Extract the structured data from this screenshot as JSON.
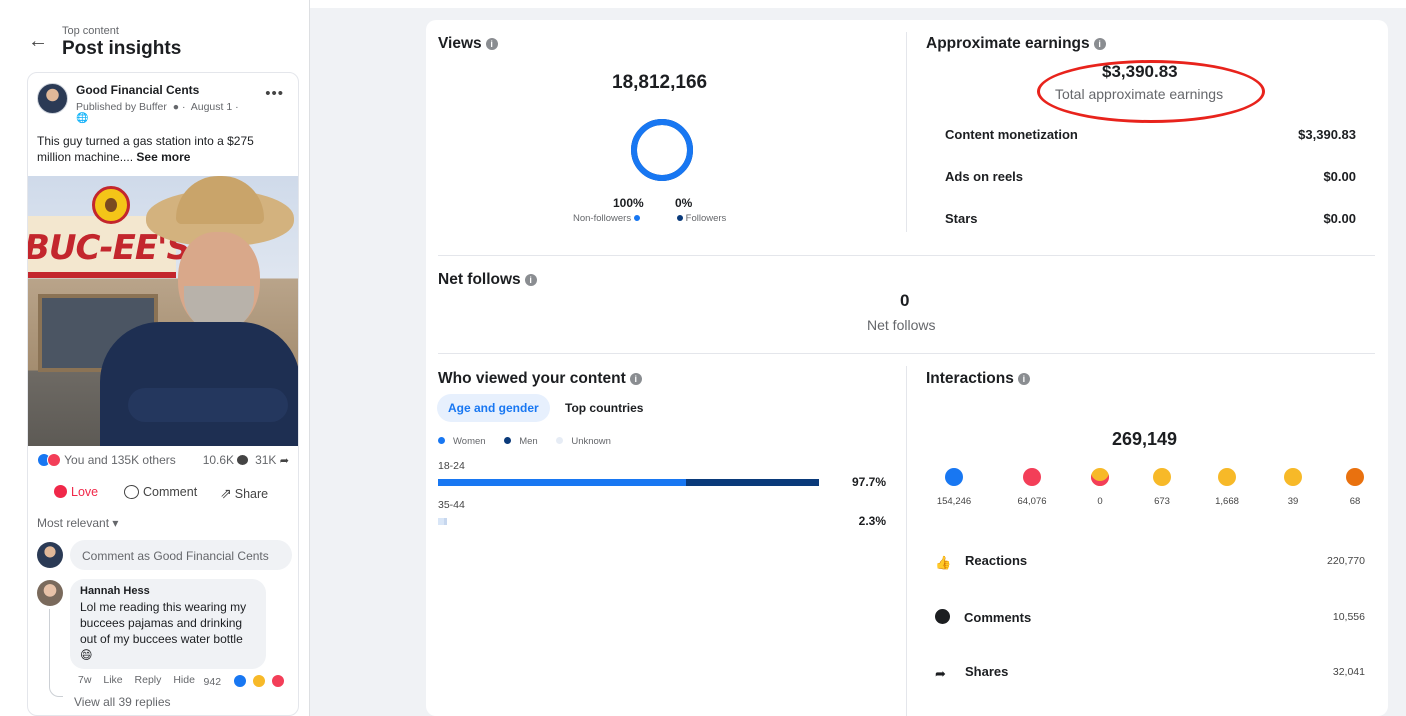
{
  "header": {
    "breadcrumb": "Top content",
    "title": "Post insights"
  },
  "post": {
    "page_name": "Good Financial Cents",
    "published": "Published by Buffer",
    "date": "August 1",
    "caption": "This guy turned a gas station into a $275 million machine....",
    "see_more": "See more",
    "reactions_text": "You and 135K others",
    "comments_count": "10.6K",
    "shares_count": "31K",
    "actions": {
      "love": "Love",
      "comment": "Comment",
      "share": "Share"
    },
    "sort_label": "Most relevant",
    "comment_placeholder": "Comment as Good Financial Cents",
    "image_sign_text": "BUC-EE'S"
  },
  "comment": {
    "author": "Hannah Hess",
    "text": "Lol me reading this wearing my buccees pajamas and drinking out of my buccees water bottle 😄",
    "time": "7w",
    "like": "Like",
    "reply": "Reply",
    "hide": "Hide",
    "reaction_count": "942",
    "view_replies": "View all 39 replies"
  },
  "views": {
    "title": "Views",
    "total": "18,812,166",
    "non_followers_pct": "100%",
    "non_followers_label": "Non-followers",
    "followers_pct": "0%",
    "followers_label": "Followers",
    "non_followers_fraction": 1.0
  },
  "earnings": {
    "title": "Approximate earnings",
    "total": "$3,390.83",
    "subtitle": "Total approximate earnings",
    "rows": [
      {
        "label": "Content monetization",
        "value": "$3,390.83"
      },
      {
        "label": "Ads on reels",
        "value": "$0.00"
      },
      {
        "label": "Stars",
        "value": "$0.00"
      }
    ]
  },
  "net_follows": {
    "title": "Net follows",
    "value": "0",
    "label": "Net follows"
  },
  "audience": {
    "title": "Who viewed your content",
    "tabs": [
      "Age and gender",
      "Top countries"
    ],
    "legend": [
      "Women",
      "Men",
      "Unknown"
    ],
    "rows": [
      {
        "age": "18-24",
        "pct": "97.7%",
        "women": 0.635,
        "men": 0.342
      },
      {
        "age": "35-44",
        "pct": "2.3%",
        "women": 0.015,
        "men": 0.008
      }
    ]
  },
  "interactions": {
    "title": "Interactions",
    "total": "269,149",
    "emojis": [
      {
        "name": "like",
        "count": "154,246"
      },
      {
        "name": "love",
        "count": "64,076"
      },
      {
        "name": "care",
        "count": "0"
      },
      {
        "name": "haha",
        "count": "673"
      },
      {
        "name": "wow",
        "count": "1,668"
      },
      {
        "name": "sad",
        "count": "39"
      },
      {
        "name": "angry",
        "count": "68"
      }
    ],
    "rows": [
      {
        "label": "Reactions",
        "value": "220,770"
      },
      {
        "label": "Comments",
        "value": "10,556"
      },
      {
        "label": "Shares",
        "value": "32,041"
      }
    ]
  },
  "colors": {
    "accent": "#1877f2",
    "dark_blue": "#0a3a7a",
    "love_red": "#f33e58",
    "highlight_ring": "#e8231c"
  }
}
